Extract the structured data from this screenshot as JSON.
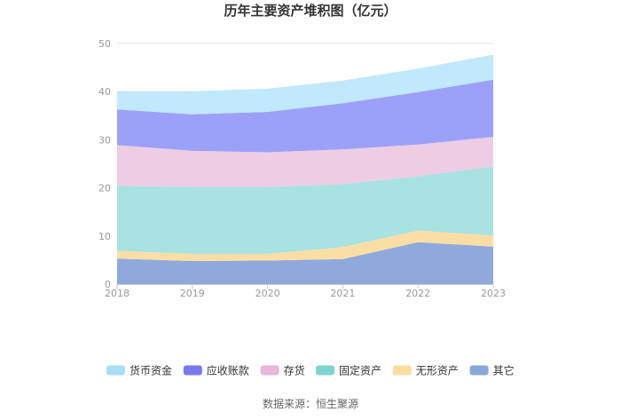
{
  "chart_data": {
    "type": "area",
    "stacked": true,
    "title": "历年主要资产堆积图（亿元）",
    "xlabel": "",
    "ylabel": "",
    "categories": [
      "2018",
      "2019",
      "2020",
      "2021",
      "2022",
      "2023"
    ],
    "ylim": [
      0,
      50
    ],
    "yticks": [
      "0",
      "10",
      "20",
      "30",
      "40",
      "50"
    ],
    "grid": true,
    "legend_position": "bottom",
    "series": [
      {
        "name": "其它",
        "color": "#8fa9dc",
        "values": [
          5.3,
          4.8,
          4.9,
          5.2,
          8.7,
          7.8
        ]
      },
      {
        "name": "无形资产",
        "color": "#fbdea6",
        "values": [
          1.6,
          1.5,
          1.4,
          2.5,
          2.4,
          2.3
        ]
      },
      {
        "name": "固定资产",
        "color": "#a8e2e1",
        "values": [
          13.5,
          13.9,
          13.9,
          13.1,
          11.3,
          14.4
        ]
      },
      {
        "name": "存货",
        "color": "#eecde4",
        "values": [
          8.5,
          7.5,
          7.2,
          7.2,
          6.6,
          6.1
        ]
      },
      {
        "name": "应收账款",
        "color": "#9ba1f9",
        "values": [
          7.4,
          7.6,
          8.4,
          9.6,
          10.9,
          11.9
        ]
      },
      {
        "name": "货币资金",
        "color": "#c2e8fb",
        "values": [
          3.8,
          4.8,
          4.8,
          4.7,
          4.9,
          5.2
        ]
      }
    ],
    "legend_order": [
      "货币资金",
      "应收账款",
      "存货",
      "固定资产",
      "无形资产",
      "其它"
    ],
    "legend_swatch_colors": {
      "货币资金": "#a9def8",
      "应收账款": "#7a79ec",
      "存货": "#e8b6d6",
      "固定资产": "#7fd4d2",
      "无形资产": "#fbdca0",
      "其它": "#8aa7da"
    }
  },
  "source": "数据来源：恒生聚源"
}
